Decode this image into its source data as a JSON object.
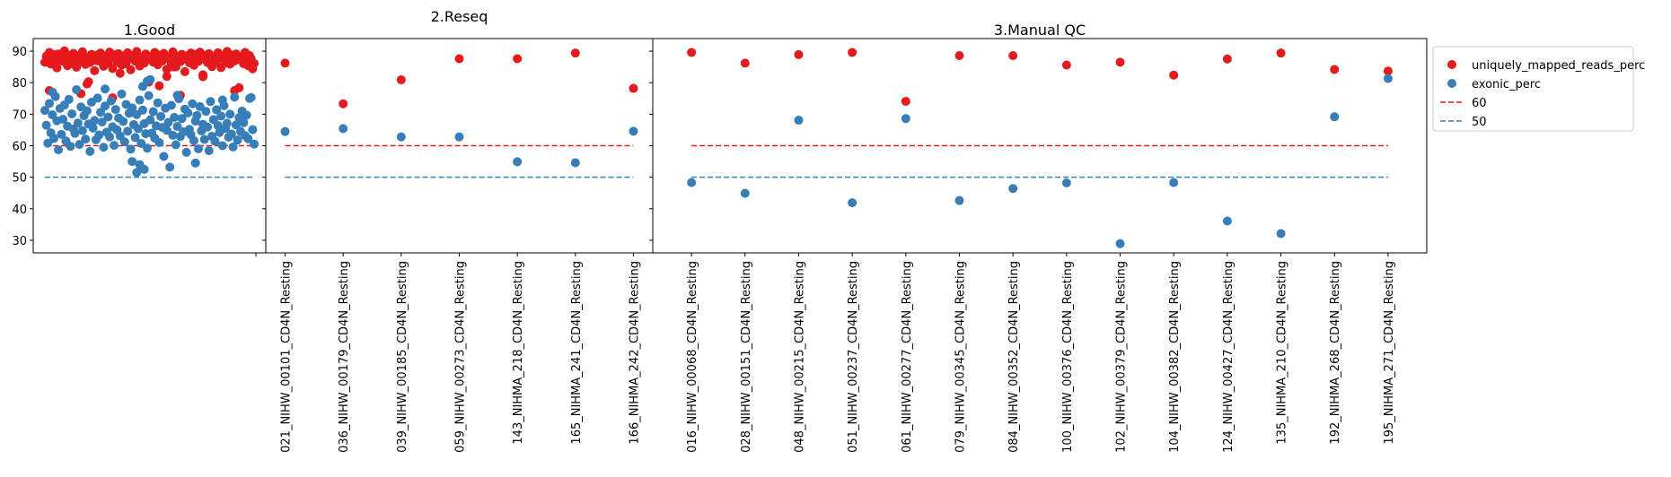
{
  "chart_data": {
    "type": "scatter",
    "colors": {
      "uniquely_mapped_reads_perc": "#e41a1c",
      "exonic_perc": "#377eb8",
      "ref60": "#e41a1c",
      "ref50": "#377eb8"
    },
    "ylim": [
      26,
      94
    ],
    "yticks": [
      30,
      40,
      50,
      60,
      70,
      80,
      90
    ],
    "reference_lines": [
      {
        "label": "60",
        "value": 60,
        "color": "#e41a1c"
      },
      {
        "label": "50",
        "value": 50,
        "color": "#377eb8"
      }
    ],
    "legend": {
      "placement": "outside-right",
      "entries": [
        {
          "label": "uniquely_mapped_reads_perc",
          "kind": "point",
          "color": "#e41a1c"
        },
        {
          "label": "exonic_perc",
          "kind": "point",
          "color": "#377eb8"
        },
        {
          "label": "60",
          "kind": "dashed-line",
          "color": "#e41a1c"
        },
        {
          "label": "50",
          "kind": "dashed-line",
          "color": "#377eb8"
        }
      ]
    },
    "panels": [
      {
        "title": "1.Good",
        "show_yticks": true,
        "categories": [],
        "n_samples": 140,
        "series": [
          {
            "name": "uniquely_mapped_reads_perc",
            "values": [
              86.5,
              88.4,
              87.2,
              89.6,
              85.9,
              87.8,
              88.9,
              86.2,
              84.7,
              89.1,
              87.5,
              88.2,
              86.8,
              90.1,
              87.1,
              85.4,
              88.7,
              87.9,
              86.1,
              89.3,
              88.0,
              84.9,
              87.4,
              88.6,
              86.7,
              89.8,
              87.3,
              85.8,
              88.1,
              87.6,
              86.4,
              89.0,
              88.3,
              83.8,
              87.0,
              88.8,
              86.9,
              89.4,
              87.7,
              85.2,
              88.5,
              87.2,
              86.3,
              89.7,
              88.1,
              84.5,
              87.8,
              88.9,
              86.6,
              89.2,
              87.9,
              85.6,
              88.4,
              87.4,
              86.0,
              89.5,
              88.2,
              84.1,
              87.6,
              88.7,
              86.8,
              89.9,
              87.5,
              85.3,
              88.0,
              87.1,
              86.2,
              89.1,
              88.6,
              80.2,
              87.3,
              88.3,
              86.5,
              89.6,
              87.8,
              85.7,
              88.8,
              87.0,
              86.9,
              89.3,
              88.4,
              84.3,
              87.7,
              88.1,
              86.1,
              89.8,
              87.2,
              85.0,
              88.5,
              87.9,
              86.7,
              89.0,
              88.2,
              83.5,
              87.4,
              88.6,
              86.3,
              89.4,
              87.6,
              85.5,
              88.9,
              87.3,
              86.8,
              89.7,
              88.0,
              81.9,
              87.5,
              88.7,
              86.4,
              89.2,
              87.8,
              85.1,
              88.3,
              87.0,
              86.6,
              89.5,
              88.1,
              84.8,
              87.9,
              88.4,
              86.2,
              89.9,
              87.1,
              85.9,
              88.8,
              87.4,
              86.9,
              89.1,
              88.5,
              78.4,
              87.2,
              88.0,
              86.0,
              89.6,
              87.7,
              85.4,
              88.6,
              87.6,
              84.4,
              86.1
            ],
            "extra_points": [
              [
                3,
                77.5
              ],
              [
                24,
                76.5
              ],
              [
                28,
                79.6
              ],
              [
                29,
                80.3
              ],
              [
                45,
                75.2
              ],
              [
                76,
                79.0
              ],
              [
                81,
                82.0
              ],
              [
                85,
                85.0
              ],
              [
                105,
                82.5
              ],
              [
                126,
                77.5
              ],
              [
                90,
                76.0
              ],
              [
                50,
                83.0
              ]
            ]
          },
          {
            "name": "exonic_perc",
            "values": [
              71.2,
              66.5,
              60.8,
              73.4,
              64.1,
              69.8,
              62.3,
              75.6,
              67.9,
              58.7,
              71.8,
              63.6,
              68.4,
              72.9,
              61.5,
              66.2,
              74.7,
              59.8,
              70.1,
              65.3,
              63.9,
              77.8,
              67.2,
              60.4,
              72.3,
              64.8,
              69.5,
              62.1,
              71.1,
              66.9,
              58.2,
              73.8,
              65.6,
              68.0,
              61.9,
              75.1,
              63.4,
              70.6,
              67.5,
              59.5,
              72.6,
              64.3,
              69.1,
              62.8,
              74.2,
              66.0,
              60.1,
              71.5,
              65.0,
              68.8,
              63.1,
              76.4,
              67.7,
              61.2,
              73.1,
              64.6,
              70.3,
              58.9,
              72.0,
              66.7,
              62.6,
              69.9,
              65.4,
              74.5,
              60.7,
              71.3,
              67.0,
              63.8,
              59.2,
              75.9,
              68.2,
              64.0,
              70.8,
              62.4,
              66.3,
              73.6,
              61.0,
              69.3,
              65.8,
              56.6,
              71.9,
              64.9,
              67.4,
              53.2,
              72.8,
              63.3,
              69.0,
              60.3,
              66.1,
              74.9,
              62.9,
              68.6,
              64.4,
              71.6,
              57.9,
              70.4,
              65.2,
              63.5,
              73.3,
              61.6,
              67.8,
              69.6,
              59.0,
              72.4,
              64.7,
              66.8,
              62.0,
              70.9,
              65.9,
              58.4,
              74.0,
              63.0,
              68.3,
              61.4,
              71.4,
              66.4,
              64.2,
              69.4,
              60.0,
              72.7,
              65.5,
              67.1,
              62.7,
              70.0,
              63.7,
              59.6,
              75.4,
              66.6,
              61.8,
              68.9,
              64.5,
              71.0,
              67.3,
              63.2,
              69.7,
              62.2,
              75.0,
              75.3,
              65.1,
              60.5
            ],
            "extra_points": [
              [
                5,
                77.0
              ],
              [
                40,
                78.0
              ],
              [
                65,
                78.8
              ],
              [
                68,
                80.5
              ],
              [
                70,
                81.0
              ],
              [
                58,
                55.0
              ],
              [
                61,
                51.5
              ],
              [
                63,
                54.0
              ],
              [
                66,
                52.5
              ],
              [
                100,
                54.5
              ],
              [
                118,
                74.5
              ],
              [
                88,
                76.0
              ]
            ]
          }
        ]
      },
      {
        "title": "2.Reseq",
        "show_yticks": false,
        "categories": [
          "021_NIHW_00101_CD4N_Resting",
          "036_NIHW_00179_CD4N_Resting",
          "039_NIHW_00185_CD4N_Resting",
          "059_NIHW_00273_CD4N_Resting",
          "143_NIHMA_218_CD4N_Resting",
          "165_NIHMA_241_CD4N_Resting",
          "166_NIHMA_242_CD4N_Resting"
        ],
        "series": [
          {
            "name": "uniquely_mapped_reads_perc",
            "values": [
              86.2,
              73.3,
              80.9,
              87.6,
              87.6,
              89.4,
              78.2
            ]
          },
          {
            "name": "exonic_perc",
            "values": [
              64.5,
              65.4,
              62.8,
              62.8,
              54.9,
              54.6,
              64.6
            ]
          }
        ]
      },
      {
        "title": "3.Manual QC",
        "show_yticks": false,
        "categories": [
          "016_NIHW_00068_CD4N_Resting",
          "028_NIHW_00151_CD4N_Resting",
          "048_NIHW_00215_CD4N_Resting",
          "051_NIHW_00237_CD4N_Resting",
          "061_NIHW_00277_CD4N_Resting",
          "079_NIHW_00345_CD4N_Resting",
          "084_NIHW_00352_CD4N_Resting",
          "100_NIHW_00376_CD4N_Resting",
          "102_NIHW_00379_CD4N_Resting",
          "104_NIHW_00382_CD4N_Resting",
          "124_NIHW_00427_CD4N_Resting",
          "135_NIHMA_210_CD4N_Resting",
          "192_NIHMA_268_CD4N_Resting",
          "195_NIHMA_271_CD4N_Resting"
        ],
        "series": [
          {
            "name": "uniquely_mapped_reads_perc",
            "values": [
              89.6,
              86.2,
              88.9,
              89.6,
              74.1,
              88.6,
              88.6,
              85.6,
              86.5,
              82.4,
              87.5,
              89.4,
              84.2,
              83.7
            ]
          },
          {
            "name": "exonic_perc",
            "values": [
              48.3,
              44.9,
              68.1,
              41.9,
              68.6,
              42.6,
              46.4,
              48.2,
              28.9,
              48.3,
              36.1,
              32.1,
              69.2,
              81.3
            ]
          }
        ]
      }
    ]
  }
}
